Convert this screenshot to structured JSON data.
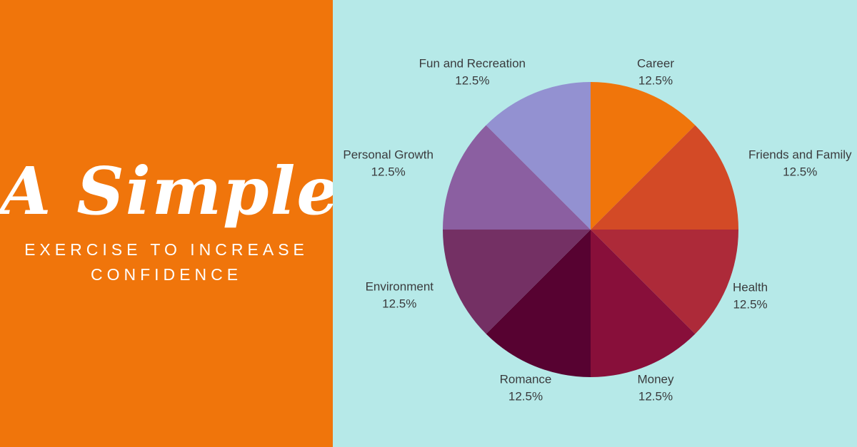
{
  "left_panel": {
    "title": "A Simple",
    "subtitle_line1": "EXERCISE TO INCREASE",
    "subtitle_line2": "CONFIDENCE",
    "background_color": "#F0750B",
    "text_color": "#FFFFFF"
  },
  "right_panel": {
    "background_color": "#B6E9E8"
  },
  "chart_data": {
    "type": "pie",
    "title": "",
    "categories": [
      "Career",
      "Friends and Family",
      "Health",
      "Money",
      "Romance",
      "Environment",
      "Personal Growth",
      "Fun and Recreation"
    ],
    "values": [
      12.5,
      12.5,
      12.5,
      12.5,
      12.5,
      12.5,
      12.5,
      12.5
    ],
    "value_labels": [
      "12.5%",
      "12.5%",
      "12.5%",
      "12.5%",
      "12.5%",
      "12.5%",
      "12.5%",
      "12.5%"
    ],
    "colors": [
      "#F0750B",
      "#D34A26",
      "#AD2A39",
      "#880F3A",
      "#570231",
      "#743064",
      "#8B5FA1",
      "#9391D1"
    ],
    "start_angle_deg": -90,
    "direction": "clockwise",
    "label_color": "#3A3B3D",
    "legend": "none"
  }
}
